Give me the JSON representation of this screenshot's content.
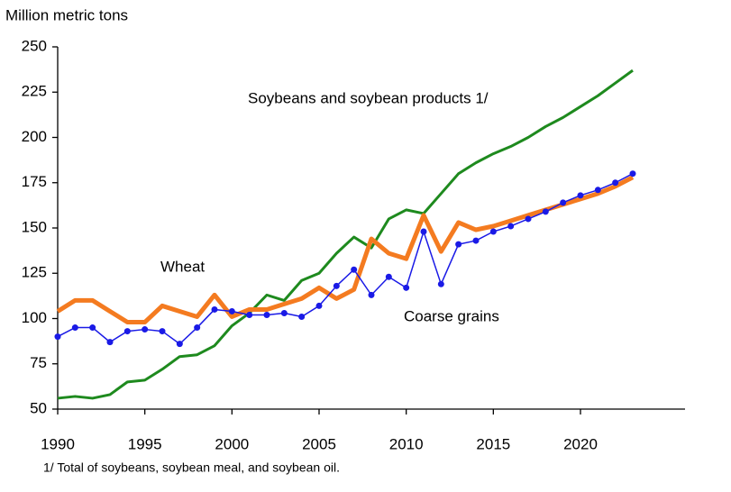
{
  "chart_data": {
    "type": "line",
    "y_axis_label": "Million metric tons",
    "footnote": "1/ Total of soybeans, soybean meal, and soybean oil.",
    "x": [
      1990,
      1991,
      1992,
      1993,
      1994,
      1995,
      1996,
      1997,
      1998,
      1999,
      2000,
      2001,
      2002,
      2003,
      2004,
      2005,
      2006,
      2007,
      2008,
      2009,
      2010,
      2011,
      2012,
      2013,
      2014,
      2015,
      2016,
      2017,
      2018,
      2019,
      2020,
      2021,
      2022,
      2023
    ],
    "series": [
      {
        "name": "Soybeans and soybean products 1/",
        "color": "#1e8a1e",
        "values": [
          56,
          57,
          56,
          58,
          65,
          66,
          72,
          79,
          80,
          85,
          96,
          103,
          113,
          110,
          121,
          125,
          136,
          145,
          139,
          155,
          160,
          158,
          169,
          180,
          186,
          191,
          195,
          200,
          206,
          211,
          217,
          223,
          230,
          237
        ]
      },
      {
        "name": "Wheat",
        "color": "#f47b20",
        "values": [
          104,
          110,
          110,
          104,
          98,
          98,
          107,
          104,
          101,
          113,
          101,
          105,
          105,
          108,
          111,
          117,
          111,
          116,
          144,
          136,
          133,
          157,
          137,
          153,
          149,
          151,
          154,
          157,
          160,
          163,
          166,
          169,
          173,
          178
        ]
      },
      {
        "name": "Coarse grains",
        "color": "#1a1ae6",
        "markers": true,
        "values": [
          90,
          95,
          95,
          87,
          93,
          94,
          93,
          86,
          95,
          105,
          104,
          102,
          102,
          103,
          101,
          107,
          118,
          127,
          113,
          123,
          117,
          148,
          119,
          141,
          143,
          148,
          151,
          155,
          159,
          164,
          168,
          171,
          175,
          180
        ]
      }
    ],
    "xlim": [
      1990,
      2026
    ],
    "xticks": [
      1990,
      1995,
      2000,
      2005,
      2010,
      2015,
      2020
    ],
    "ylim": [
      50,
      250
    ],
    "yticks": [
      50,
      75,
      100,
      125,
      150,
      175,
      200,
      225,
      250
    ],
    "grid": false
  }
}
